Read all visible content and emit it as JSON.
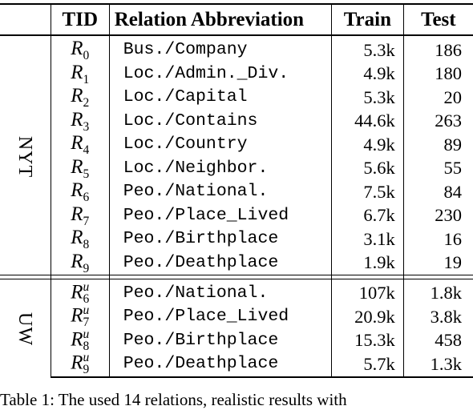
{
  "header": {
    "group": "",
    "tid": "TID",
    "relation": "Relation Abbreviation",
    "train": "Train",
    "test": "Test"
  },
  "groups": [
    {
      "name": "NYT",
      "rows": [
        {
          "tid_base": "R",
          "tid_sub": "0",
          "tid_sup": "",
          "relation": "Bus./Company",
          "train": "5.3k",
          "test": "186"
        },
        {
          "tid_base": "R",
          "tid_sub": "1",
          "tid_sup": "",
          "relation": "Loc./Admin._Div.",
          "train": "4.9k",
          "test": "180"
        },
        {
          "tid_base": "R",
          "tid_sub": "2",
          "tid_sup": "",
          "relation": "Loc./Capital",
          "train": "5.3k",
          "test": "20"
        },
        {
          "tid_base": "R",
          "tid_sub": "3",
          "tid_sup": "",
          "relation": "Loc./Contains",
          "train": "44.6k",
          "test": "263"
        },
        {
          "tid_base": "R",
          "tid_sub": "4",
          "tid_sup": "",
          "relation": "Loc./Country",
          "train": "4.9k",
          "test": "89"
        },
        {
          "tid_base": "R",
          "tid_sub": "5",
          "tid_sup": "",
          "relation": "Loc./Neighbor.",
          "train": "5.6k",
          "test": "55"
        },
        {
          "tid_base": "R",
          "tid_sub": "6",
          "tid_sup": "",
          "relation": "Peo./National.",
          "train": "7.5k",
          "test": "84"
        },
        {
          "tid_base": "R",
          "tid_sub": "7",
          "tid_sup": "",
          "relation": "Peo./Place_Lived",
          "train": "6.7k",
          "test": "230"
        },
        {
          "tid_base": "R",
          "tid_sub": "8",
          "tid_sup": "",
          "relation": "Peo./Birthplace",
          "train": "3.1k",
          "test": "16"
        },
        {
          "tid_base": "R",
          "tid_sub": "9",
          "tid_sup": "",
          "relation": "Peo./Deathplace",
          "train": "1.9k",
          "test": "19"
        }
      ]
    },
    {
      "name": "UW",
      "rows": [
        {
          "tid_base": "R",
          "tid_sub": "6",
          "tid_sup": "u",
          "relation": "Peo./National.",
          "train": "107k",
          "test": "1.8k"
        },
        {
          "tid_base": "R",
          "tid_sub": "7",
          "tid_sup": "u",
          "relation": "Peo./Place_Lived",
          "train": "20.9k",
          "test": "3.8k"
        },
        {
          "tid_base": "R",
          "tid_sub": "8",
          "tid_sup": "u",
          "relation": "Peo./Birthplace",
          "train": "15.3k",
          "test": "458"
        },
        {
          "tid_base": "R",
          "tid_sub": "9",
          "tid_sup": "u",
          "relation": "Peo./Deathplace",
          "train": "5.7k",
          "test": "1.3k"
        }
      ]
    }
  ],
  "caption": "Table 1: The used 14 relations, realistic results with"
}
